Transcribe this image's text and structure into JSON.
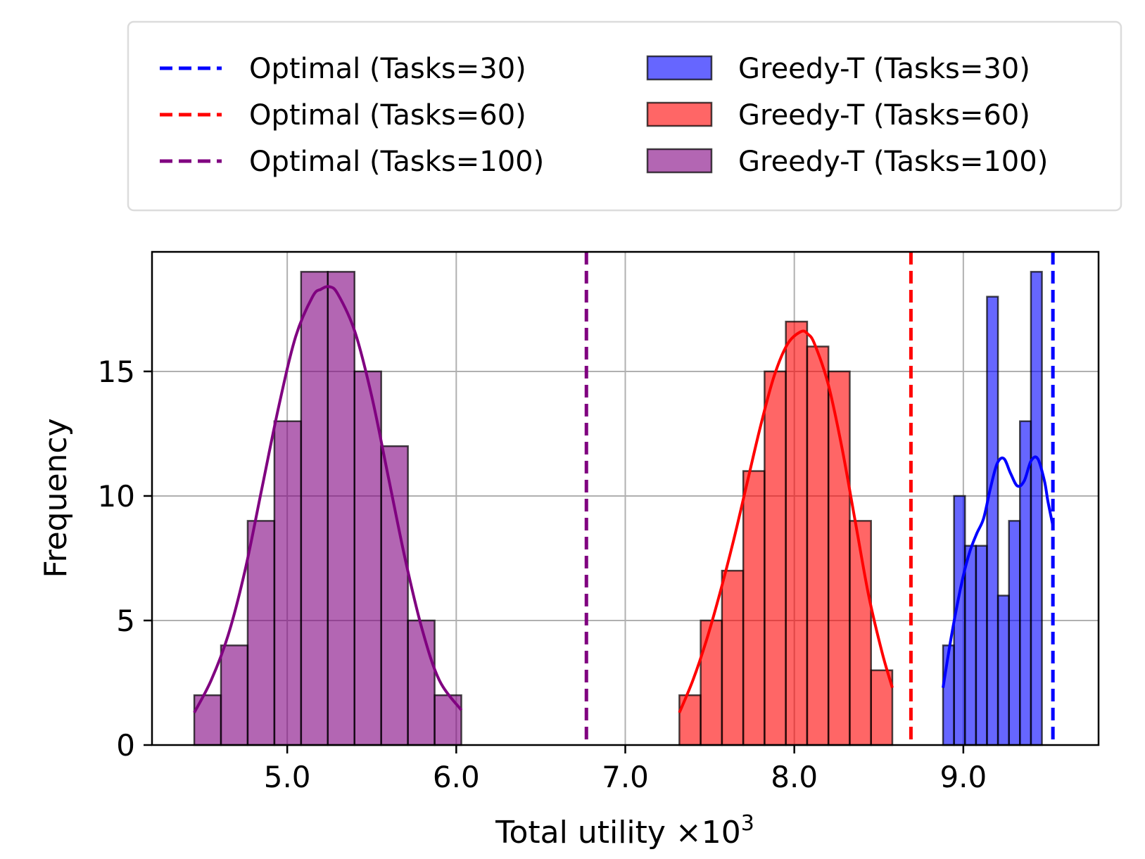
{
  "chart_data": {
    "type": "histogram",
    "xlabel": "Total utility ×10",
    "xlabel_exponent": "3",
    "ylabel": "Frequency",
    "xlim": [
      4.2,
      9.8
    ],
    "ylim": [
      0,
      19.8
    ],
    "x_ticks": [
      5.0,
      6.0,
      7.0,
      8.0,
      9.0
    ],
    "x_tick_labels": [
      "5.0",
      "6.0",
      "7.0",
      "8.0",
      "9.0"
    ],
    "y_ticks": [
      0,
      5,
      10,
      15
    ],
    "y_tick_labels": [
      "0",
      "5",
      "10",
      "15"
    ],
    "grid": true,
    "legend_position": "above plot, two columns",
    "optimal_lines": [
      {
        "name": "Optimal (Tasks=30)",
        "x": 9.53,
        "color": "#0000ff"
      },
      {
        "name": "Optimal (Tasks=60)",
        "x": 8.69,
        "color": "#ff0000"
      },
      {
        "name": "Optimal (Tasks=100)",
        "x": 6.77,
        "color": "#800080"
      }
    ],
    "series": [
      {
        "name": "Greedy-T (Tasks=30)",
        "color": "#0000ff",
        "bin_edges": [
          8.88,
          8.945,
          9.01,
          9.075,
          9.14,
          9.205,
          9.27,
          9.335,
          9.4,
          9.465,
          9.53
        ],
        "counts": [
          4,
          10,
          8,
          8,
          18,
          6,
          9,
          13,
          19,
          0
        ],
        "kde": {
          "x": [
            8.88,
            8.92,
            8.96,
            9.0,
            9.04,
            9.08,
            9.12,
            9.16,
            9.2,
            9.24,
            9.28,
            9.32,
            9.36,
            9.4,
            9.44,
            9.48,
            9.5,
            9.53
          ],
          "y": [
            2.3,
            4.0,
            5.5,
            6.8,
            7.8,
            8.5,
            9.1,
            10.3,
            11.3,
            11.5,
            10.9,
            10.4,
            10.6,
            11.4,
            11.5,
            10.6,
            9.8,
            8.8
          ]
        }
      },
      {
        "name": "Greedy-T (Tasks=60)",
        "color": "#ff0000",
        "bin_edges": [
          7.32,
          7.446,
          7.572,
          7.698,
          7.824,
          7.95,
          8.076,
          8.202,
          8.328,
          8.454,
          8.58
        ],
        "counts": [
          2,
          5,
          7,
          11,
          15,
          17,
          16,
          15,
          9,
          3
        ],
        "kde": {
          "x": [
            7.32,
            7.4,
            7.48,
            7.56,
            7.64,
            7.72,
            7.8,
            7.88,
            7.96,
            8.04,
            8.08,
            8.12,
            8.2,
            8.28,
            8.36,
            8.44,
            8.52,
            8.58
          ],
          "y": [
            1.3,
            2.6,
            4.2,
            6.1,
            8.2,
            10.5,
            12.8,
            14.8,
            16.1,
            16.6,
            16.5,
            16.1,
            14.5,
            12.0,
            9.0,
            6.0,
            3.7,
            2.3
          ]
        }
      },
      {
        "name": "Greedy-T (Tasks=100)",
        "color": "#800080",
        "bin_edges": [
          4.45,
          4.608,
          4.766,
          4.924,
          5.082,
          5.24,
          5.398,
          5.556,
          5.714,
          5.872,
          6.03
        ],
        "counts": [
          2,
          4,
          9,
          13,
          19,
          19,
          15,
          12,
          5,
          2
        ],
        "kde": {
          "x": [
            4.45,
            4.55,
            4.65,
            4.75,
            4.85,
            4.95,
            5.05,
            5.15,
            5.2,
            5.25,
            5.3,
            5.4,
            5.5,
            5.6,
            5.7,
            5.8,
            5.9,
            6.03
          ],
          "y": [
            1.3,
            2.6,
            4.4,
            7.0,
            10.3,
            13.6,
            16.4,
            18.0,
            18.3,
            18.4,
            18.1,
            16.6,
            14.0,
            10.7,
            7.4,
            4.6,
            2.6,
            1.4
          ]
        }
      }
    ]
  }
}
